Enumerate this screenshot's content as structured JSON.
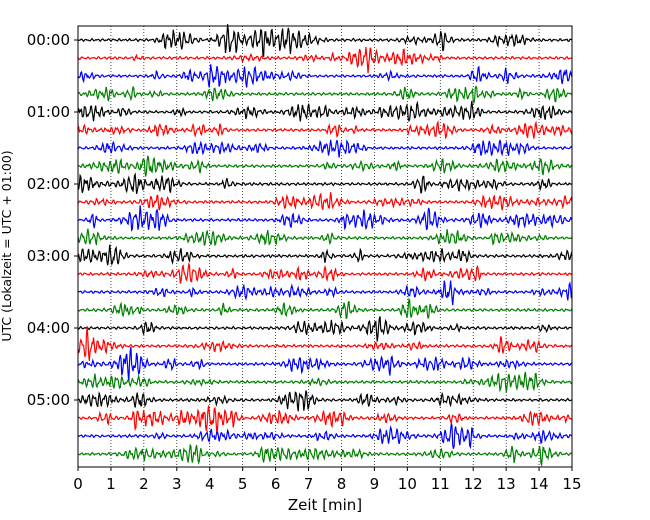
{
  "chart_data": {
    "type": "line",
    "title": "",
    "xlabel": "Zeit  [min]",
    "ylabel": "UTC (Lokalzeit = UTC + 01:00)",
    "xlim": [
      0,
      15
    ],
    "x_ticks": [
      0,
      1,
      2,
      3,
      4,
      5,
      6,
      7,
      8,
      9,
      10,
      11,
      12,
      13,
      14,
      15
    ],
    "x_tick_labels": [
      "0",
      "1",
      "2",
      "3",
      "4",
      "5",
      "6",
      "7",
      "8",
      "9",
      "10",
      "11",
      "12",
      "13",
      "14",
      "15"
    ],
    "y_tick_labels": [
      "00:00",
      "01:00",
      "02:00",
      "03:00",
      "04:00",
      "05:00"
    ],
    "trace_interval_minutes": 15,
    "trace_count": 24,
    "trace_colors": [
      "#000000",
      "#ff0000",
      "#0000ff",
      "#008000"
    ],
    "grid": "vertical dotted"
  }
}
